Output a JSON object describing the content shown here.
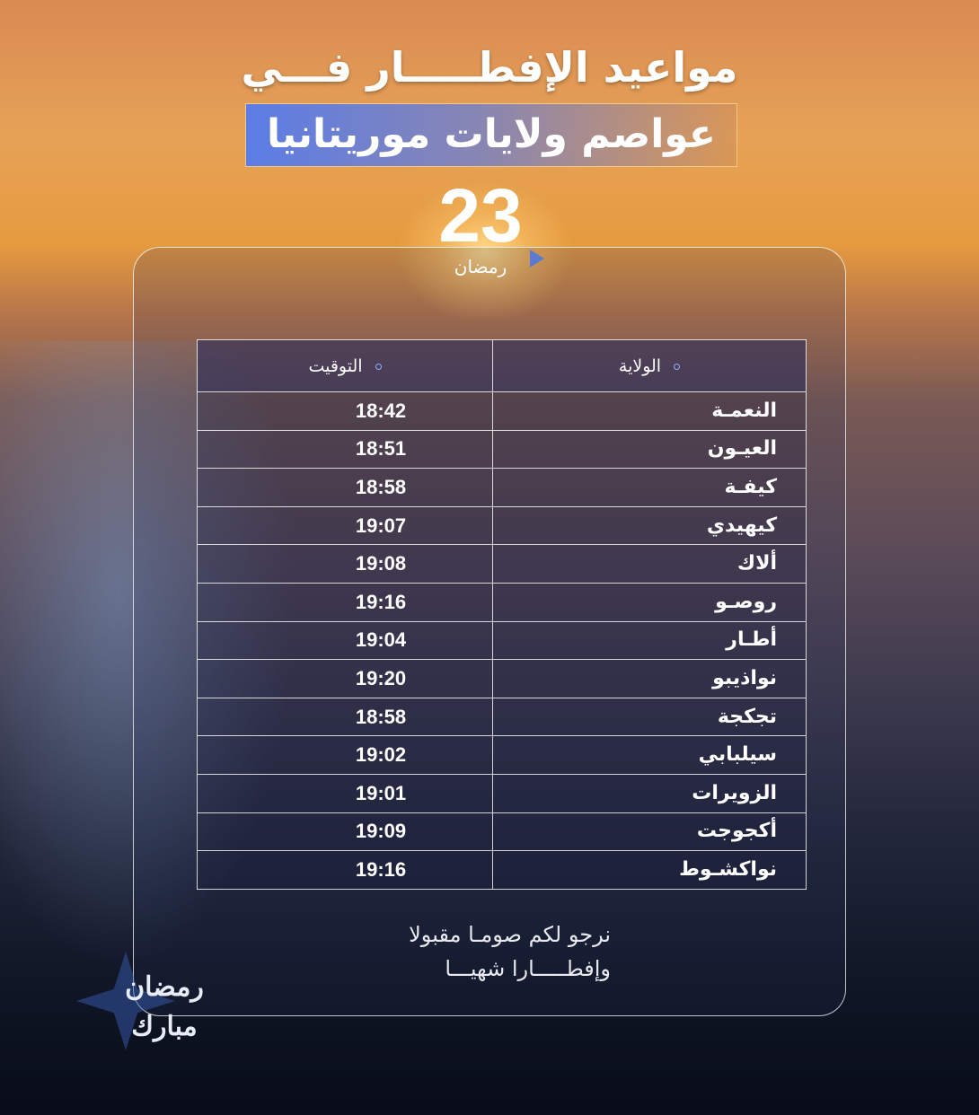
{
  "title_line1": "مواعيد الإفطـــــار فـــي",
  "title_line2": "عواصم ولايات موريتانيا",
  "day": "23",
  "month": "رمضان",
  "table": {
    "headers": {
      "region": "الولاية",
      "time": "التوقيت"
    },
    "rows": [
      {
        "region": "النعمـة",
        "time": "18:42"
      },
      {
        "region": "العيـون",
        "time": "18:51"
      },
      {
        "region": "كيفـة",
        "time": "18:58"
      },
      {
        "region": "كيهيدي",
        "time": "19:07"
      },
      {
        "region": "ألاك",
        "time": "19:08"
      },
      {
        "region": "روصـو",
        "time": "19:16"
      },
      {
        "region": "أطـار",
        "time": "19:04"
      },
      {
        "region": "نواذيبو",
        "time": "19:20"
      },
      {
        "region": "تجكجة",
        "time": "18:58"
      },
      {
        "region": "سيلبابي",
        "time": "19:02"
      },
      {
        "region": "الزويرات",
        "time": "19:01"
      },
      {
        "region": "أكجوجت",
        "time": "19:09"
      },
      {
        "region": "نواكشـوط",
        "time": "19:16"
      }
    ]
  },
  "wish_line1": "نرجو لكم صومـا مقبولا",
  "wish_line2": "وإفطـــــارا شهيـــا",
  "logo": "رمضان مبارك"
}
